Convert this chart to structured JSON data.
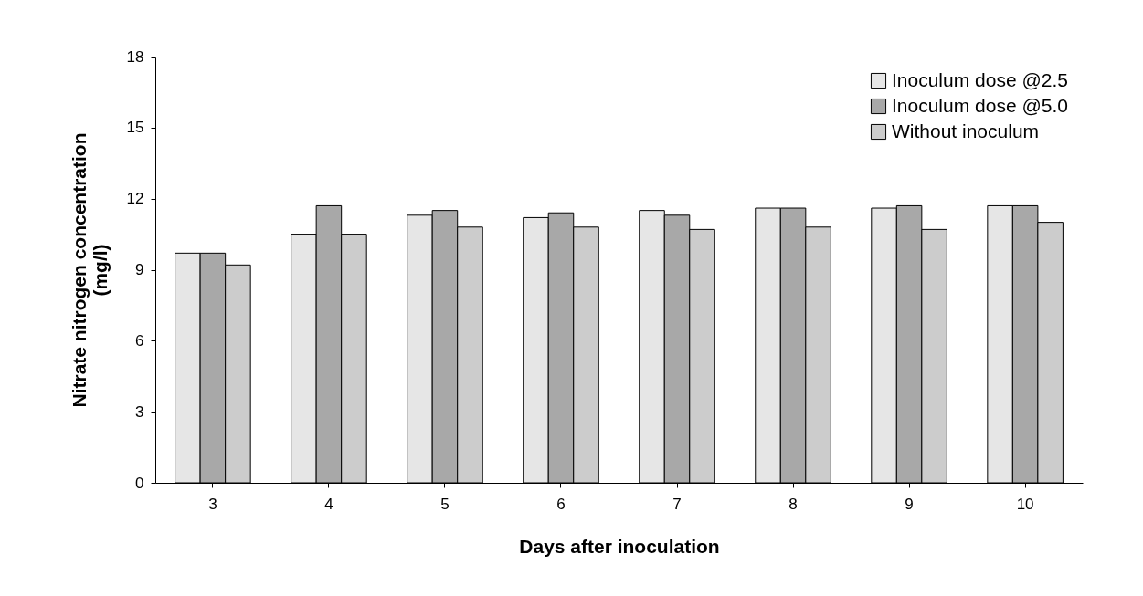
{
  "chart_data": {
    "type": "bar",
    "xlabel": "Days after inoculation",
    "ylabel": "Nitrate nitrogen concentration\n(mg/l)",
    "categories": [
      "3",
      "4",
      "5",
      "6",
      "7",
      "8",
      "9",
      "10"
    ],
    "series": [
      {
        "name": "Inoculum dose @2.5",
        "color": "#e6e6e6",
        "values": [
          9.7,
          10.5,
          11.3,
          11.2,
          11.5,
          11.6,
          11.6,
          11.7
        ]
      },
      {
        "name": "Inoculum dose @5.0",
        "color": "#a8a8a8",
        "values": [
          9.7,
          11.7,
          11.5,
          11.4,
          11.3,
          11.6,
          11.7,
          11.7
        ]
      },
      {
        "name": "Without inoculum",
        "color": "#cccccc",
        "values": [
          9.2,
          10.5,
          10.8,
          10.8,
          10.7,
          10.8,
          10.7,
          11.0
        ]
      }
    ],
    "ylim": [
      0,
      18
    ],
    "yticks": [
      0,
      3,
      6,
      9,
      12,
      15,
      18
    ],
    "grid": false,
    "legend": "top right"
  }
}
